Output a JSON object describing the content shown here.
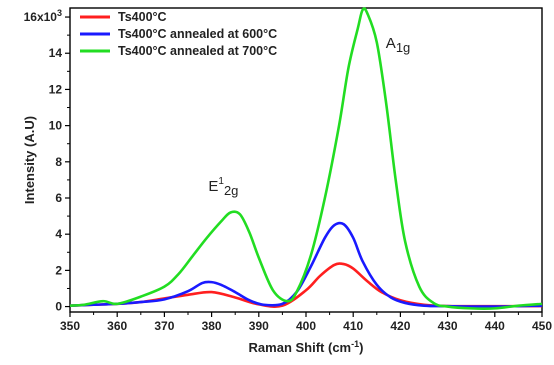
{
  "chart_data": {
    "type": "line",
    "xlabel": "Raman Shift (cm",
    "xlabel_sup": "-1",
    "xlabel_tail": ")",
    "ylabel": "Intensity (A.U)",
    "xlim": [
      350,
      450
    ],
    "ylim": [
      -0.3,
      16.5
    ],
    "x_ticks": [
      "350",
      "360",
      "370",
      "380",
      "390",
      "400",
      "410",
      "420",
      "430",
      "440",
      "450"
    ],
    "y_ticks": [
      "0",
      "2",
      "4",
      "6",
      "8",
      "10",
      "12",
      "14"
    ],
    "y_top_tick": {
      "base": "16x10",
      "sup": "3",
      "value": 16
    },
    "grid": false,
    "legend_position": "top-left",
    "series": [
      {
        "name": "Ts400°C",
        "color": "#ff1f1f",
        "x": [
          350,
          355,
          360,
          365,
          370,
          375,
          380,
          385,
          390,
          395,
          400,
          403,
          406,
          408,
          410,
          413,
          416,
          420,
          425,
          430,
          440,
          450
        ],
        "y": [
          0.05,
          0.1,
          0.15,
          0.25,
          0.45,
          0.65,
          0.8,
          0.5,
          0.12,
          0.05,
          0.9,
          1.7,
          2.3,
          2.35,
          2.1,
          1.4,
          0.8,
          0.35,
          0.1,
          0.03,
          0.02,
          0.03
        ]
      },
      {
        "name": "Ts400°C annealed at 600°C",
        "color": "#1a1aff",
        "x": [
          350,
          355,
          360,
          365,
          370,
          375,
          378,
          380,
          382,
          385,
          388,
          391,
          395,
          398,
          401,
          404,
          406,
          408,
          410,
          412,
          415,
          418,
          421,
          425,
          430,
          440,
          450
        ],
        "y": [
          0.05,
          0.1,
          0.15,
          0.25,
          0.4,
          0.85,
          1.3,
          1.35,
          1.2,
          0.8,
          0.35,
          0.1,
          0.15,
          0.8,
          2.2,
          3.8,
          4.5,
          4.55,
          3.8,
          2.5,
          1.2,
          0.5,
          0.2,
          0.05,
          0.02,
          0.0,
          0.05
        ]
      },
      {
        "name": "Ts400°C annealed at 700°C",
        "color": "#22dd22",
        "x": [
          350,
          353,
          357,
          360,
          365,
          370,
          373,
          376,
          379,
          382,
          384,
          386,
          388,
          390,
          393,
          396,
          398,
          401,
          404,
          407,
          409,
          411,
          412,
          413,
          415,
          417,
          419,
          421,
          424,
          427,
          430,
          435,
          440,
          445,
          450
        ],
        "y": [
          0.05,
          0.1,
          0.3,
          0.15,
          0.55,
          1.1,
          1.8,
          2.8,
          3.8,
          4.7,
          5.2,
          5.1,
          4.1,
          2.7,
          0.9,
          0.3,
          0.8,
          2.8,
          6.0,
          10.0,
          13.2,
          15.4,
          16.4,
          16.2,
          14.6,
          11.2,
          7.0,
          3.6,
          1.1,
          0.2,
          0.0,
          -0.1,
          -0.1,
          0.05,
          0.15
        ]
      }
    ],
    "annotations": [
      {
        "base": "E",
        "sup": "1",
        "sub": "2g",
        "x": 382.5,
        "y": 6.4
      },
      {
        "base": "A",
        "sub": "1g",
        "x": 419.5,
        "y": 14.3
      }
    ]
  }
}
